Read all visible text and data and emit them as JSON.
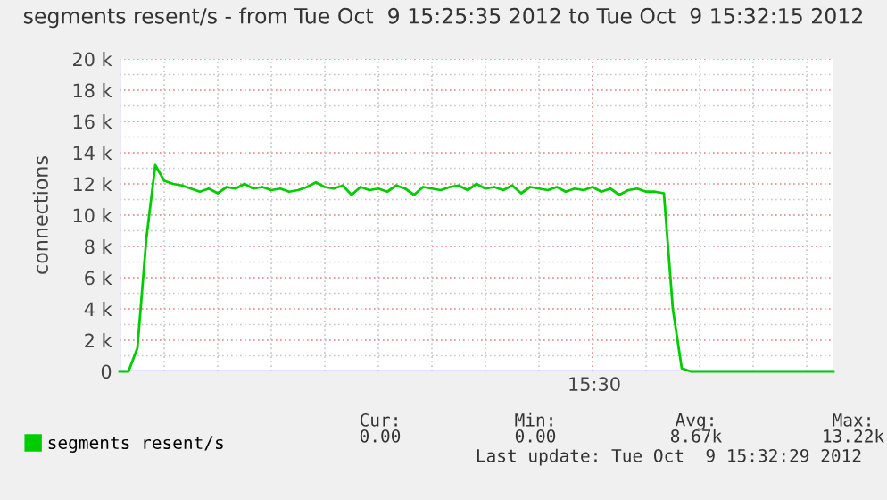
{
  "chart_data": {
    "type": "line",
    "title": "segments resent/s - from Tue Oct  9 15:25:35 2012 to Tue Oct  9 15:32:15 2012",
    "ylabel": "connections",
    "categories": [
      null,
      null,
      null,
      null,
      null,
      null,
      null,
      null,
      null,
      null,
      null,
      null,
      null,
      null,
      null,
      null,
      null,
      null,
      null,
      null,
      null,
      null,
      null,
      null,
      null,
      null,
      null,
      null,
      null,
      null,
      null,
      null,
      null,
      null,
      null,
      null,
      null,
      null,
      null,
      null,
      null,
      null,
      null,
      null,
      null,
      null,
      null,
      null,
      null,
      null,
      null,
      null,
      null,
      null,
      null,
      null,
      null,
      null,
      null,
      null,
      null,
      null,
      null,
      null,
      null,
      null,
      null,
      null,
      null,
      null,
      null,
      null,
      null,
      null,
      null,
      null,
      null,
      null,
      null,
      null,
      null
    ],
    "series": [
      {
        "name": "segments resent/s",
        "color": "#00cc00",
        "values": [
          0,
          0,
          1500,
          8500,
          13200,
          12200,
          12000,
          11900,
          11700,
          11500,
          11700,
          11400,
          11800,
          11700,
          12000,
          11700,
          11800,
          11600,
          11700,
          11500,
          11600,
          11800,
          12100,
          11800,
          11700,
          11900,
          11300,
          11800,
          11600,
          11700,
          11500,
          11900,
          11700,
          11300,
          11800,
          11700,
          11600,
          11800,
          11900,
          11600,
          12000,
          11700,
          11800,
          11600,
          11900,
          11400,
          11800,
          11700,
          11600,
          11800,
          11500,
          11700,
          11600,
          11800,
          11500,
          11700,
          11300,
          11600,
          11700,
          11500,
          11500,
          11400,
          4000,
          200,
          0,
          0,
          0,
          0,
          0,
          0,
          0,
          0,
          0,
          0,
          0,
          0,
          0,
          0,
          0,
          0,
          0
        ]
      }
    ],
    "ylim": [
      0,
      20000
    ],
    "yticks": [
      {
        "value": 0,
        "label": "0"
      },
      {
        "value": 1000,
        "label": null
      },
      {
        "value": 2000,
        "label": "2 k"
      },
      {
        "value": 3000,
        "label": null
      },
      {
        "value": 4000,
        "label": "4 k"
      },
      {
        "value": 5000,
        "label": null
      },
      {
        "value": 6000,
        "label": "6 k"
      },
      {
        "value": 7000,
        "label": null
      },
      {
        "value": 8000,
        "label": "8 k"
      },
      {
        "value": 9000,
        "label": null
      },
      {
        "value": 10000,
        "label": "10 k"
      },
      {
        "value": 11000,
        "label": null
      },
      {
        "value": 12000,
        "label": "12 k"
      },
      {
        "value": 13000,
        "label": null
      },
      {
        "value": 14000,
        "label": "14 k"
      },
      {
        "value": 15000,
        "label": null
      },
      {
        "value": 16000,
        "label": "16 k"
      },
      {
        "value": 17000,
        "label": null
      },
      {
        "value": 18000,
        "label": "18 k"
      },
      {
        "value": 19000,
        "label": null
      },
      {
        "value": 20000,
        "label": "20 k"
      }
    ],
    "grid": true,
    "legend": "bottom",
    "marker": "none",
    "line_style": "solid",
    "annotations": [
      "15:30",
      "Cur:",
      "Min:",
      "Avg:",
      "Max:",
      "0.00",
      "0.00",
      "8.67k",
      "13.22k",
      "Last update: Tue Oct  9 15:32:29 2012"
    ]
  }
}
